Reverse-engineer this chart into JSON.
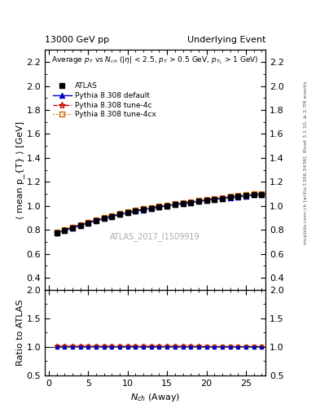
{
  "title_left": "13000 GeV pp",
  "title_right": "Underlying Event",
  "right_label_top": "Rivet 3.1.10, ≥ 2.7M events",
  "right_label_bottom": "mcplots.cern.ch [arXiv:1306.3436]",
  "watermark": "ATLAS_2017_I1509919",
  "xlabel": "N_{ch} (Away)",
  "ylabel_main": "⟨ mean p_{T} ⟩ [GeV]",
  "ylabel_ratio": "Ratio to ATLAS",
  "ylim_main": [
    0.3,
    2.3
  ],
  "ylim_ratio": [
    0.5,
    2.0
  ],
  "xlim": [
    -0.5,
    27.5
  ],
  "yticks_main": [
    0.4,
    0.6,
    0.8,
    1.0,
    1.2,
    1.4,
    1.6,
    1.8,
    2.0,
    2.2
  ],
  "yticks_ratio": [
    0.5,
    1.0,
    1.5,
    2.0
  ],
  "xticks": [
    0,
    5,
    10,
    15,
    20,
    25
  ],
  "data_x": [
    1,
    2,
    3,
    4,
    5,
    6,
    7,
    8,
    9,
    10,
    11,
    12,
    13,
    14,
    15,
    16,
    17,
    18,
    19,
    20,
    21,
    22,
    23,
    24,
    25,
    26,
    27
  ],
  "data_atlas_y": [
    0.775,
    0.795,
    0.815,
    0.838,
    0.858,
    0.876,
    0.894,
    0.912,
    0.928,
    0.942,
    0.956,
    0.968,
    0.98,
    0.99,
    1.0,
    1.01,
    1.02,
    1.028,
    1.037,
    1.046,
    1.055,
    1.062,
    1.07,
    1.077,
    1.084,
    1.09,
    1.096
  ],
  "data_atlas_yerr": [
    0.01,
    0.008,
    0.006,
    0.006,
    0.006,
    0.006,
    0.006,
    0.006,
    0.006,
    0.006,
    0.006,
    0.006,
    0.006,
    0.006,
    0.006,
    0.006,
    0.006,
    0.006,
    0.006,
    0.006,
    0.006,
    0.006,
    0.006,
    0.006,
    0.007,
    0.007,
    0.008
  ],
  "data_default_y": [
    0.773,
    0.793,
    0.815,
    0.837,
    0.857,
    0.876,
    0.893,
    0.911,
    0.927,
    0.941,
    0.955,
    0.967,
    0.979,
    0.989,
    0.999,
    1.009,
    1.019,
    1.027,
    1.036,
    1.045,
    1.054,
    1.062,
    1.069,
    1.076,
    1.083,
    1.09,
    1.096
  ],
  "data_tune4c_y": [
    0.778,
    0.8,
    0.821,
    0.842,
    0.862,
    0.881,
    0.898,
    0.916,
    0.932,
    0.946,
    0.96,
    0.972,
    0.984,
    0.994,
    1.004,
    1.014,
    1.024,
    1.032,
    1.041,
    1.05,
    1.059,
    1.066,
    1.074,
    1.081,
    1.088,
    1.094,
    1.1
  ],
  "data_tune4cx_y": [
    0.78,
    0.802,
    0.823,
    0.845,
    0.865,
    0.884,
    0.901,
    0.919,
    0.935,
    0.949,
    0.963,
    0.975,
    0.987,
    0.997,
    1.007,
    1.017,
    1.027,
    1.035,
    1.044,
    1.053,
    1.062,
    1.069,
    1.077,
    1.084,
    1.091,
    1.097,
    1.103
  ],
  "color_atlas": "#000000",
  "color_default": "#0000cc",
  "color_tune4c": "#cc0000",
  "color_tune4cx": "#cc6600",
  "ratio_band_color": "#ccff00"
}
